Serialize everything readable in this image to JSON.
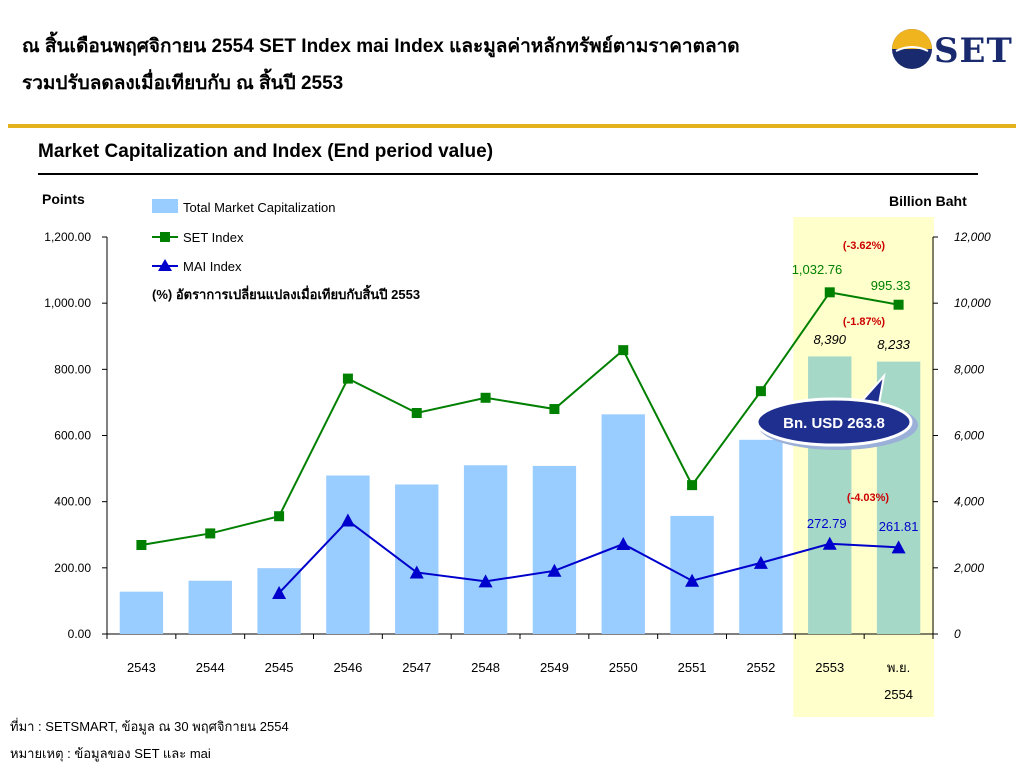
{
  "header": {
    "line1": "ณ สิ้นเดือนพฤศจิกายน 2554  SET Index mai Index และมูลค่าหลักทรัพย์ตามราคาตลาด",
    "line2": "รวมปรับลดลงเมื่อเทียบกับ ณ สิ้นปี 2553",
    "logo_text": "SET",
    "colors": {
      "accent_rule": "#e3b21c",
      "logo_blue": "#1a2a6e",
      "logo_gold": "#f0b41e"
    }
  },
  "footer": {
    "source": "ที่มา : SETSMART, ข้อมูล ณ 30 พฤศจิกายน 2554",
    "note": "หมายเหตุ : ข้อมูลของ SET และ mai"
  },
  "chart_data": {
    "type": "bar",
    "title": "Market Capitalization and Index (End period value)",
    "y_left_label": "Points",
    "y_right_label": "Billion Baht",
    "y_left_ticks": [
      "0.00",
      "200.00",
      "400.00",
      "600.00",
      "800.00",
      "1,000.00",
      "1,200.00"
    ],
    "y_right_ticks": [
      "0",
      "2,000",
      "4,000",
      "6,000",
      "8,000",
      "10,000",
      "12,000"
    ],
    "ylim_left": [
      0,
      1200
    ],
    "ylim_right": [
      0,
      12000
    ],
    "categories": [
      "2543",
      "2544",
      "2545",
      "2546",
      "2547",
      "2548",
      "2549",
      "2550",
      "2551",
      "2552",
      "2553",
      "พ.ย."
    ],
    "category_sublabels": [
      "",
      "",
      "",
      "",
      "",
      "",
      "",
      "",
      "",
      "",
      "",
      "2554"
    ],
    "highlight_categories": [
      "2553",
      "พ.ย."
    ],
    "legend_note": "(%)  อัตราการเปลี่ยนแปลงเมื่อเทียบกับสิ้นปี 2553",
    "series": [
      {
        "name": "Total Market Capitalization",
        "kind": "bar",
        "axis": "right",
        "color": "#99ccff",
        "values": [
          1280,
          1610,
          1990,
          4790,
          4520,
          5100,
          5080,
          6640,
          3570,
          5870,
          8390,
          8233
        ]
      },
      {
        "name": "SET Index",
        "kind": "line",
        "axis": "left",
        "color": "#008000",
        "values": [
          269,
          304,
          356,
          772,
          668,
          714,
          680,
          858,
          450,
          734,
          1032.76,
          995.33
        ]
      },
      {
        "name": "MAI Index",
        "kind": "line",
        "axis": "left",
        "color": "#0000cc",
        "values": [
          null,
          null,
          124,
          343,
          186,
          159,
          191,
          272,
          161,
          215,
          272.79,
          261.81
        ]
      }
    ],
    "data_labels": {
      "set_2553": "1,032.76",
      "set_nov": "995.33",
      "set_change": "(-3.62%)",
      "mcap_2553": "8,390",
      "mcap_nov": "8,233",
      "mcap_change": "(-1.87%)",
      "mai_2553": "272.79",
      "mai_nov": "261.81",
      "mai_change": "(-4.03%)"
    },
    "callout": "Bn. USD 263.8",
    "grid": false,
    "legend_position": "top-left"
  }
}
